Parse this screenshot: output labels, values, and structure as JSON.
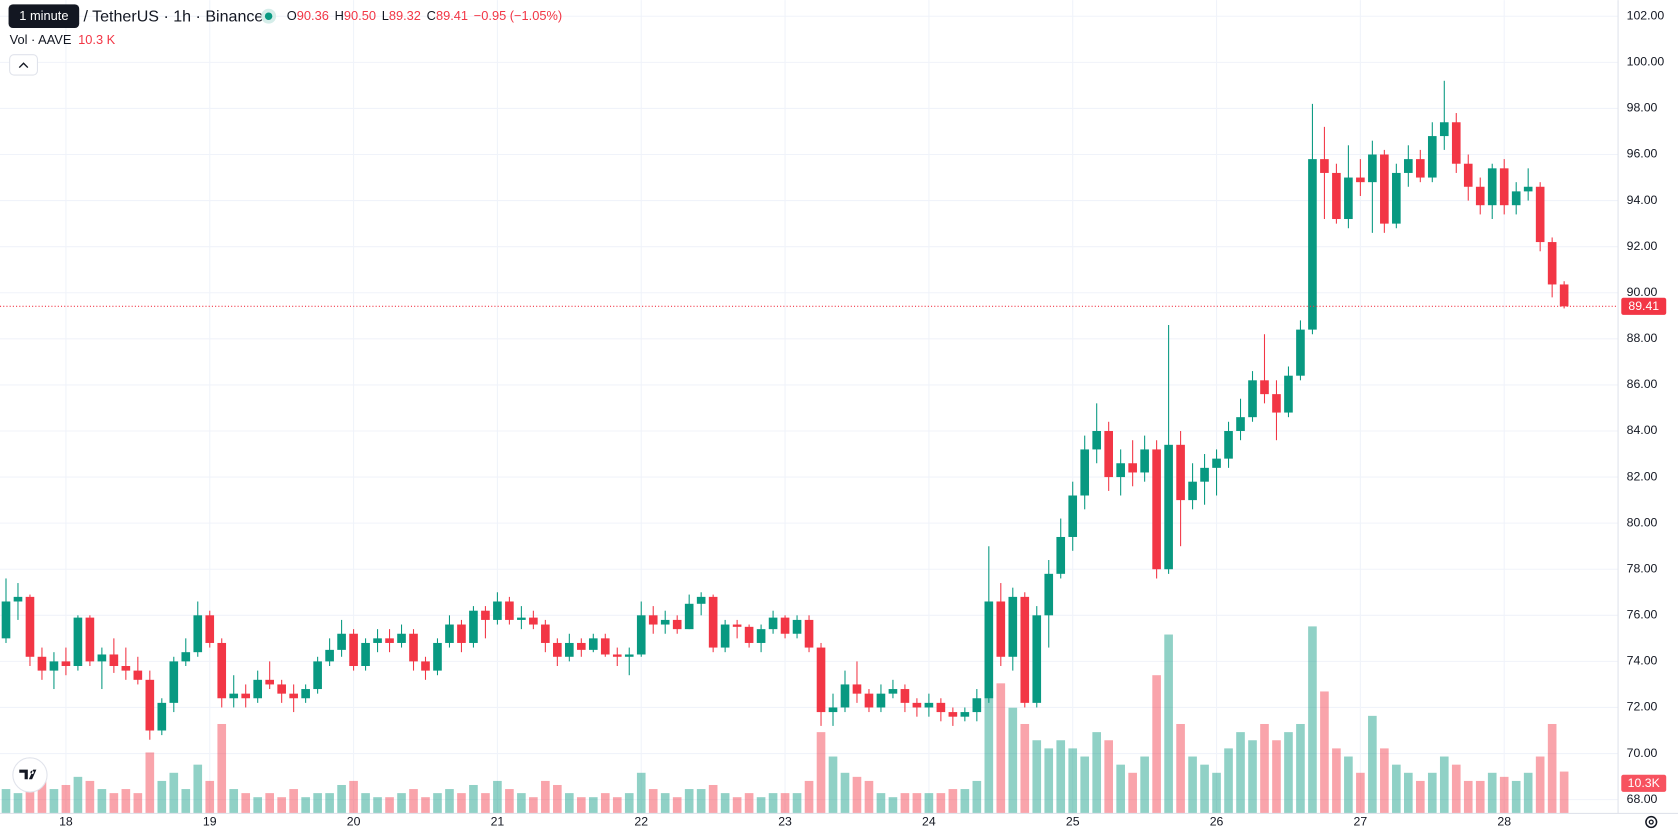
{
  "chart_data": {
    "type": "candlestick",
    "tooltip": "1 minute",
    "title": "/ TetherUS · 1h · Binance",
    "ohlc_letters": [
      "O",
      "H",
      "L",
      "C"
    ],
    "ohlc_labels": [
      "90.36",
      "90.50",
      "89.32",
      "89.41"
    ],
    "change_label": "−0.95 (−1.05%)",
    "volume_title": "Vol · AAVE",
    "last_volume_label": "10.3 K",
    "last_volume_axis_label": "10.3K",
    "up_color": "#089981",
    "down_color": "#f23645",
    "grid": true,
    "ylim": [
      67.4,
      102.7
    ],
    "yticks": [
      {
        "value": 68,
        "label": "68.00"
      },
      {
        "value": 70,
        "label": "70.00"
      },
      {
        "value": 72,
        "label": "72.00"
      },
      {
        "value": 74,
        "label": "74.00"
      },
      {
        "value": 76,
        "label": "76.00"
      },
      {
        "value": 78,
        "label": "78.00"
      },
      {
        "value": 80,
        "label": "80.00"
      },
      {
        "value": 82,
        "label": "82.00"
      },
      {
        "value": 84,
        "label": "84.00"
      },
      {
        "value": 86,
        "label": "86.00"
      },
      {
        "value": 88,
        "label": "88.00"
      },
      {
        "value": 90,
        "label": "90.00"
      },
      {
        "value": 92,
        "label": "92.00"
      },
      {
        "value": 94,
        "label": "94.00"
      },
      {
        "value": 96,
        "label": "96.00"
      },
      {
        "value": 98,
        "label": "98.00"
      },
      {
        "value": 100,
        "label": "100.00"
      },
      {
        "value": 102,
        "label": "102.00"
      }
    ],
    "xlim": [
      -0.5,
      134.5
    ],
    "xticks": [
      {
        "value": 5,
        "label": "18"
      },
      {
        "value": 17,
        "label": "19"
      },
      {
        "value": 29,
        "label": "20"
      },
      {
        "value": 41,
        "label": "21"
      },
      {
        "value": 53,
        "label": "22"
      },
      {
        "value": 65,
        "label": "23"
      },
      {
        "value": 77,
        "label": "24"
      },
      {
        "value": 89,
        "label": "25"
      },
      {
        "value": 101,
        "label": "26"
      },
      {
        "value": 113,
        "label": "27"
      },
      {
        "value": 125,
        "label": "28"
      }
    ],
    "volume_lim": [
      0,
      200
    ],
    "candles": [
      [
        75.0,
        77.6,
        74.8,
        76.6
      ],
      [
        76.6,
        77.4,
        75.8,
        76.8
      ],
      [
        76.8,
        76.9,
        73.8,
        74.2
      ],
      [
        74.2,
        74.6,
        73.2,
        73.6
      ],
      [
        73.6,
        74.4,
        72.8,
        74.0
      ],
      [
        74.0,
        74.6,
        73.4,
        73.8
      ],
      [
        73.8,
        76.0,
        73.6,
        75.9
      ],
      [
        75.9,
        76.0,
        73.8,
        74.0
      ],
      [
        74.0,
        74.6,
        72.8,
        74.3
      ],
      [
        74.3,
        75.0,
        73.5,
        73.8
      ],
      [
        73.8,
        74.6,
        73.2,
        73.6
      ],
      [
        73.6,
        74.2,
        73.0,
        73.2
      ],
      [
        73.2,
        73.6,
        70.6,
        71.0
      ],
      [
        71.0,
        72.4,
        70.8,
        72.2
      ],
      [
        72.2,
        74.2,
        71.8,
        74.0
      ],
      [
        74.0,
        75.0,
        73.8,
        74.4
      ],
      [
        74.4,
        76.6,
        74.2,
        76.0
      ],
      [
        76.0,
        76.2,
        74.6,
        74.8
      ],
      [
        74.8,
        75.0,
        72.0,
        72.4
      ],
      [
        72.4,
        73.4,
        72.0,
        72.6
      ],
      [
        72.6,
        73.0,
        72.0,
        72.4
      ],
      [
        72.4,
        73.6,
        72.2,
        73.2
      ],
      [
        73.2,
        74.0,
        72.8,
        73.0
      ],
      [
        73.0,
        73.2,
        72.2,
        72.6
      ],
      [
        72.6,
        73.0,
        71.8,
        72.4
      ],
      [
        72.4,
        73.0,
        72.2,
        72.8
      ],
      [
        72.8,
        74.2,
        72.6,
        74.0
      ],
      [
        74.0,
        75.0,
        73.8,
        74.5
      ],
      [
        74.5,
        75.8,
        74.2,
        75.2
      ],
      [
        75.2,
        75.4,
        73.6,
        73.8
      ],
      [
        73.8,
        75.0,
        73.6,
        74.8
      ],
      [
        74.8,
        75.4,
        74.4,
        75.0
      ],
      [
        75.0,
        75.4,
        74.4,
        74.8
      ],
      [
        74.8,
        75.6,
        74.6,
        75.2
      ],
      [
        75.2,
        75.4,
        73.6,
        74.0
      ],
      [
        74.0,
        74.2,
        73.2,
        73.6
      ],
      [
        73.6,
        75.0,
        73.4,
        74.8
      ],
      [
        74.8,
        76.0,
        74.6,
        75.6
      ],
      [
        75.6,
        75.8,
        74.4,
        74.8
      ],
      [
        74.8,
        76.4,
        74.6,
        76.2
      ],
      [
        76.2,
        76.4,
        75.0,
        75.8
      ],
      [
        75.8,
        77.0,
        75.6,
        76.6
      ],
      [
        76.6,
        76.8,
        75.6,
        75.8
      ],
      [
        75.8,
        76.4,
        75.4,
        75.9
      ],
      [
        75.9,
        76.2,
        75.4,
        75.6
      ],
      [
        75.6,
        75.8,
        74.4,
        74.8
      ],
      [
        74.8,
        75.0,
        73.8,
        74.2
      ],
      [
        74.2,
        75.2,
        74.0,
        74.8
      ],
      [
        74.8,
        75.0,
        74.2,
        74.5
      ],
      [
        74.5,
        75.2,
        74.4,
        75.0
      ],
      [
        75.0,
        75.2,
        74.2,
        74.3
      ],
      [
        74.3,
        74.6,
        73.8,
        74.2
      ],
      [
        74.2,
        74.6,
        73.4,
        74.3
      ],
      [
        74.3,
        76.6,
        74.2,
        76.0
      ],
      [
        76.0,
        76.4,
        75.2,
        75.6
      ],
      [
        75.6,
        76.2,
        75.2,
        75.8
      ],
      [
        75.8,
        76.0,
        75.2,
        75.4
      ],
      [
        75.4,
        76.9,
        75.4,
        76.5
      ],
      [
        76.5,
        77.0,
        76.0,
        76.8
      ],
      [
        76.8,
        76.9,
        74.4,
        74.6
      ],
      [
        74.6,
        75.8,
        74.4,
        75.6
      ],
      [
        75.6,
        75.8,
        75.0,
        75.5
      ],
      [
        75.5,
        75.6,
        74.6,
        74.8
      ],
      [
        74.8,
        75.6,
        74.4,
        75.4
      ],
      [
        75.4,
        76.2,
        75.2,
        75.9
      ],
      [
        75.9,
        76.0,
        75.0,
        75.2
      ],
      [
        75.2,
        76.0,
        75.0,
        75.8
      ],
      [
        75.8,
        76.0,
        74.4,
        74.6
      ],
      [
        74.6,
        74.8,
        71.2,
        71.8
      ],
      [
        71.8,
        72.6,
        71.2,
        72.0
      ],
      [
        72.0,
        73.6,
        71.8,
        73.0
      ],
      [
        73.0,
        74.0,
        72.2,
        72.6
      ],
      [
        72.6,
        72.8,
        71.8,
        72.0
      ],
      [
        72.0,
        73.0,
        71.8,
        72.6
      ],
      [
        72.6,
        73.2,
        72.4,
        72.8
      ],
      [
        72.8,
        73.0,
        71.8,
        72.2
      ],
      [
        72.2,
        72.4,
        71.6,
        72.0
      ],
      [
        72.0,
        72.6,
        71.6,
        72.2
      ],
      [
        72.2,
        72.4,
        71.4,
        71.8
      ],
      [
        71.8,
        72.0,
        71.2,
        71.6
      ],
      [
        71.6,
        72.0,
        71.4,
        71.8
      ],
      [
        71.8,
        72.8,
        71.4,
        72.4
      ],
      [
        72.4,
        79.0,
        72.2,
        76.6
      ],
      [
        76.6,
        77.4,
        73.8,
        74.2
      ],
      [
        74.2,
        77.2,
        73.6,
        76.8
      ],
      [
        76.8,
        77.0,
        72.0,
        72.2
      ],
      [
        72.2,
        76.4,
        72.0,
        76.0
      ],
      [
        76.0,
        78.4,
        74.6,
        77.8
      ],
      [
        77.8,
        80.2,
        77.6,
        79.4
      ],
      [
        79.4,
        81.8,
        78.8,
        81.2
      ],
      [
        81.2,
        83.8,
        80.6,
        83.2
      ],
      [
        83.2,
        85.2,
        82.6,
        84.0
      ],
      [
        84.0,
        84.4,
        81.4,
        82.0
      ],
      [
        82.0,
        83.2,
        81.2,
        82.6
      ],
      [
        82.6,
        83.6,
        81.6,
        82.2
      ],
      [
        82.2,
        83.8,
        81.8,
        83.2
      ],
      [
        83.2,
        83.6,
        77.6,
        78.0
      ],
      [
        78.0,
        88.6,
        77.8,
        83.4
      ],
      [
        83.4,
        84.0,
        79.0,
        81.0
      ],
      [
        81.0,
        82.6,
        80.6,
        81.8
      ],
      [
        81.8,
        83.0,
        80.8,
        82.4
      ],
      [
        82.4,
        83.2,
        81.2,
        82.8
      ],
      [
        82.8,
        84.4,
        82.4,
        84.0
      ],
      [
        84.0,
        85.4,
        83.6,
        84.6
      ],
      [
        84.6,
        86.6,
        84.4,
        86.2
      ],
      [
        86.2,
        88.2,
        85.2,
        85.6
      ],
      [
        85.6,
        86.2,
        83.6,
        84.8
      ],
      [
        84.8,
        86.8,
        84.6,
        86.4
      ],
      [
        86.4,
        88.8,
        86.2,
        88.4
      ],
      [
        88.4,
        98.2,
        88.2,
        95.8
      ],
      [
        95.8,
        97.2,
        93.2,
        95.2
      ],
      [
        95.2,
        95.6,
        93.0,
        93.2
      ],
      [
        93.2,
        96.4,
        92.8,
        95.0
      ],
      [
        95.0,
        95.8,
        94.2,
        94.8
      ],
      [
        94.8,
        96.6,
        92.6,
        96.0
      ],
      [
        96.0,
        96.2,
        92.6,
        93.0
      ],
      [
        93.0,
        95.6,
        92.8,
        95.2
      ],
      [
        95.2,
        96.4,
        94.6,
        95.8
      ],
      [
        95.8,
        96.2,
        94.8,
        95.0
      ],
      [
        95.0,
        97.4,
        94.8,
        96.8
      ],
      [
        96.8,
        99.2,
        96.2,
        97.4
      ],
      [
        97.4,
        97.8,
        95.2,
        95.6
      ],
      [
        95.6,
        96.0,
        94.0,
        94.6
      ],
      [
        94.6,
        95.0,
        93.4,
        93.8
      ],
      [
        93.8,
        95.6,
        93.2,
        95.4
      ],
      [
        95.4,
        95.8,
        93.4,
        93.8
      ],
      [
        93.8,
        94.8,
        93.4,
        94.4
      ],
      [
        94.4,
        95.4,
        94.0,
        94.6
      ],
      [
        94.6,
        94.8,
        91.8,
        92.2
      ],
      [
        92.2,
        92.4,
        89.8,
        90.36
      ],
      [
        90.36,
        90.5,
        89.32,
        89.41
      ]
    ],
    "volume": [
      6,
      5,
      10,
      8,
      6,
      7,
      9,
      8,
      6,
      5,
      6,
      5,
      15,
      8,
      10,
      6,
      12,
      8,
      22,
      6,
      5,
      4,
      5,
      4,
      6,
      4,
      5,
      5,
      7,
      8,
      5,
      4,
      4,
      5,
      6,
      4,
      5,
      6,
      5,
      7,
      5,
      8,
      6,
      5,
      4,
      8,
      7,
      5,
      4,
      4,
      5,
      4,
      5,
      10,
      6,
      5,
      4,
      6,
      6,
      7,
      5,
      4,
      5,
      4,
      5,
      5,
      5,
      8,
      20,
      14,
      10,
      9,
      8,
      5,
      4,
      5,
      5,
      5,
      5,
      6,
      6,
      8,
      30,
      32,
      26,
      22,
      18,
      16,
      18,
      16,
      14,
      20,
      18,
      12,
      10,
      14,
      34,
      44,
      22,
      14,
      12,
      10,
      16,
      20,
      18,
      22,
      18,
      20,
      22,
      46,
      30,
      16,
      14,
      10,
      24,
      16,
      12,
      10,
      8,
      10,
      14,
      12,
      8,
      8,
      10,
      9,
      8,
      10,
      14,
      22,
      10.3
    ]
  }
}
